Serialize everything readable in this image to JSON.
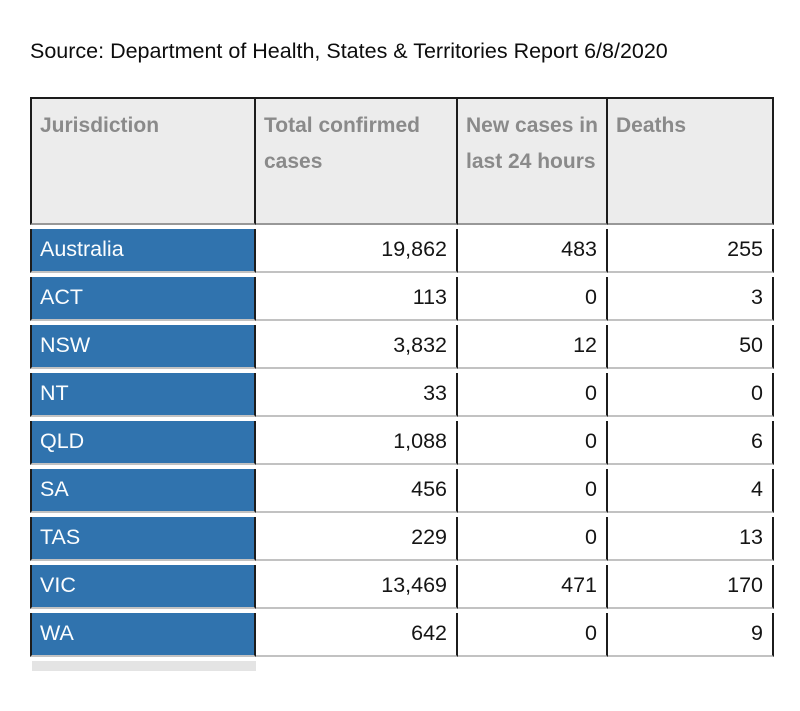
{
  "page": {
    "source_text": "Source: Department of Health, States & Territories Report 6/8/2020"
  },
  "colors": {
    "jurisdiction_blue": "#3073ae",
    "header_bg": "#ececec",
    "header_text": "#8a8a8a",
    "grid_dark": "#1c1c1c",
    "row_separator": "#c2c2c2"
  },
  "chart_data": {
    "type": "table",
    "title": "Source: Department of Health, States & Territories Report 6/8/2020",
    "columns": [
      "Jurisdiction",
      "Total confirmed cases",
      "New cases in last 24 hours",
      "Deaths"
    ],
    "rows": [
      {
        "jurisdiction": "Australia",
        "total_confirmed_cases": "19,862",
        "new_cases_last_24_hours": "483",
        "deaths": "255"
      },
      {
        "jurisdiction": "ACT",
        "total_confirmed_cases": "113",
        "new_cases_last_24_hours": "0",
        "deaths": "3"
      },
      {
        "jurisdiction": "NSW",
        "total_confirmed_cases": "3,832",
        "new_cases_last_24_hours": "12",
        "deaths": "50"
      },
      {
        "jurisdiction": "NT",
        "total_confirmed_cases": "33",
        "new_cases_last_24_hours": "0",
        "deaths": "0"
      },
      {
        "jurisdiction": "QLD",
        "total_confirmed_cases": "1,088",
        "new_cases_last_24_hours": "0",
        "deaths": "6"
      },
      {
        "jurisdiction": "SA",
        "total_confirmed_cases": "456",
        "new_cases_last_24_hours": "0",
        "deaths": "4"
      },
      {
        "jurisdiction": "TAS",
        "total_confirmed_cases": "229",
        "new_cases_last_24_hours": "0",
        "deaths": "13"
      },
      {
        "jurisdiction": "VIC",
        "total_confirmed_cases": "13,469",
        "new_cases_last_24_hours": "471",
        "deaths": "170"
      },
      {
        "jurisdiction": "WA",
        "total_confirmed_cases": "642",
        "new_cases_last_24_hours": "0",
        "deaths": "9"
      }
    ]
  }
}
